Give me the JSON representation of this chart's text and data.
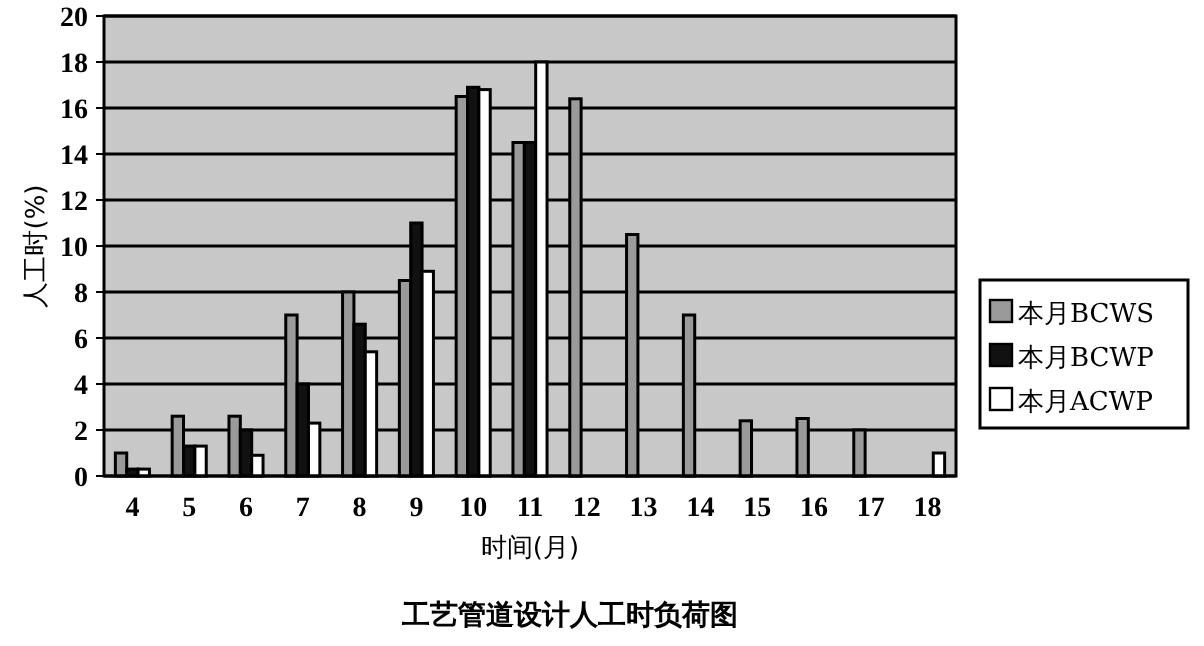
{
  "chart_data": {
    "type": "bar",
    "title": "工艺管道设计人工时负荷图",
    "xlabel": "时间(月)",
    "ylabel": "人工时(%)",
    "categories": [
      "4",
      "5",
      "6",
      "7",
      "8",
      "9",
      "10",
      "11",
      "12",
      "13",
      "14",
      "15",
      "16",
      "17",
      "18"
    ],
    "series": [
      {
        "name": "本月BCWS",
        "color": "#9a9a9a",
        "values": [
          1,
          2.6,
          2.6,
          7,
          8,
          8.5,
          16.5,
          14.5,
          16.4,
          10.5,
          7,
          2.4,
          2.5,
          2,
          null
        ]
      },
      {
        "name": "本月BCWP",
        "color": "#111111",
        "values": [
          0.3,
          1.3,
          2,
          4,
          6.6,
          11,
          16.9,
          14.5,
          null,
          null,
          null,
          null,
          null,
          null,
          null
        ]
      },
      {
        "name": "本月ACWP",
        "color": "#ffffff",
        "values": [
          0.3,
          1.3,
          0.9,
          2.3,
          5.4,
          8.9,
          16.8,
          18,
          null,
          null,
          null,
          null,
          null,
          null,
          1
        ]
      }
    ],
    "ylim": [
      0,
      20
    ],
    "yticks": [
      0,
      2,
      4,
      6,
      8,
      10,
      12,
      14,
      16,
      18,
      20
    ],
    "grid": "y",
    "legend": "right"
  }
}
